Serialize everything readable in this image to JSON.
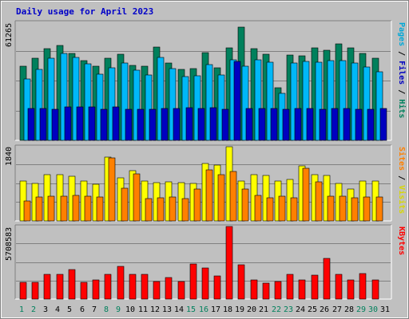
{
  "chart_data": {
    "type": "bar",
    "title": "Daily usage for April 2023",
    "categories": [
      "1",
      "2",
      "3",
      "4",
      "5",
      "6",
      "7",
      "8",
      "9",
      "10",
      "11",
      "12",
      "13",
      "14",
      "15",
      "16",
      "17",
      "18",
      "19",
      "20",
      "21",
      "22",
      "23",
      "24",
      "25",
      "26",
      "27",
      "28",
      "29",
      "30",
      "31"
    ],
    "weekend_days": [
      "1",
      "2",
      "8",
      "9",
      "15",
      "16",
      "22",
      "23",
      "29",
      "30"
    ],
    "panels": [
      {
        "id": "hits-files-pages",
        "ymax_label": "61265",
        "ylim": [
          0,
          61265
        ],
        "right_label": [
          "Pages",
          " / ",
          "Files",
          " / ",
          "Hits"
        ],
        "right_label_colors": [
          "#00a8d8",
          "#000000",
          "#0000c0",
          "#000000",
          "#00805c"
        ],
        "series": [
          {
            "name": "Hits",
            "color": "#00805c",
            "values": [
              38300,
              42800,
              47500,
              49200,
              45100,
              41600,
              38600,
              42700,
              44800,
              38900,
              38300,
              48600,
              40000,
              37000,
              37100,
              45500,
              37800,
              48200,
              58600,
              47800,
              44900,
              27500,
              44300,
              44000,
              48200,
              46700,
              50200,
              48200,
              45000,
              42500,
              null
            ]
          },
          {
            "name": "Files",
            "color": "#00b8f8",
            "values": [
              31800,
              36800,
              42500,
              45200,
              43100,
              39700,
              34300,
              37600,
              40300,
              36400,
              33800,
              43000,
              37100,
              33300,
              33700,
              39400,
              33800,
              41700,
              38600,
              42000,
              40700,
              24300,
              40100,
              40800,
              40500,
              41300,
              41400,
              40300,
              38000,
              35700,
              null
            ]
          },
          {
            "name": "Pages",
            "color": "#0000c0",
            "values": [
              16400,
              16600,
              16000,
              17400,
              17400,
              17500,
              16300,
              17500,
              16100,
              16200,
              16000,
              16600,
              16600,
              16800,
              16600,
              16900,
              16300,
              40800,
              16400,
              16500,
              16600,
              16100,
              16400,
              16400,
              16300,
              16400,
              16500,
              16300,
              16200,
              16600,
              null
            ]
          }
        ]
      },
      {
        "id": "visits-sites",
        "ymax_label": "1840",
        "ylim": [
          0,
          1840
        ],
        "right_label": [
          "Sites",
          " / ",
          "Visits"
        ],
        "right_label_colors": [
          "#ff8000",
          "#000000",
          "#d8d800"
        ],
        "series": [
          {
            "name": "Visits",
            "color": "#ffff00",
            "values": [
              990,
              930,
              1140,
              1150,
              1100,
              980,
              910,
              1580,
              1060,
              1250,
              990,
              950,
              960,
              950,
              930,
              1430,
              1390,
              1840,
              990,
              1140,
              1120,
              980,
              1020,
              1370,
              1140,
              1130,
              930,
              800,
              990,
              990,
              null
            ]
          },
          {
            "name": "Sites",
            "color": "#ff8000",
            "values": [
              500,
              600,
              620,
              620,
              640,
              610,
              590,
              1560,
              810,
              1160,
              560,
              580,
              600,
              550,
              800,
              1270,
              1140,
              1220,
              800,
              640,
              570,
              620,
              580,
              1310,
              970,
              620,
              620,
              570,
              600,
              600,
              null
            ]
          }
        ]
      },
      {
        "id": "kbytes",
        "ymax_label": "5708583",
        "ylim": [
          0,
          5708583
        ],
        "right_label": [
          "KBytes"
        ],
        "right_label_colors": [
          "#ff0000"
        ],
        "series": [
          {
            "name": "KBytes",
            "color": "#ff0000",
            "values": [
              1290000,
              1290000,
              1930000,
              1930000,
              2300000,
              1340000,
              1500000,
              1930000,
              2590000,
              1930000,
              1930000,
              1400000,
              1700000,
              1370000,
              2770000,
              2430000,
              1830000,
              5708583,
              2700000,
              1530000,
              1240000,
              1370000,
              1930000,
              1530000,
              1900000,
              3170000,
              1930000,
              1530000,
              2030000,
              1500000,
              null
            ]
          }
        ]
      }
    ]
  }
}
